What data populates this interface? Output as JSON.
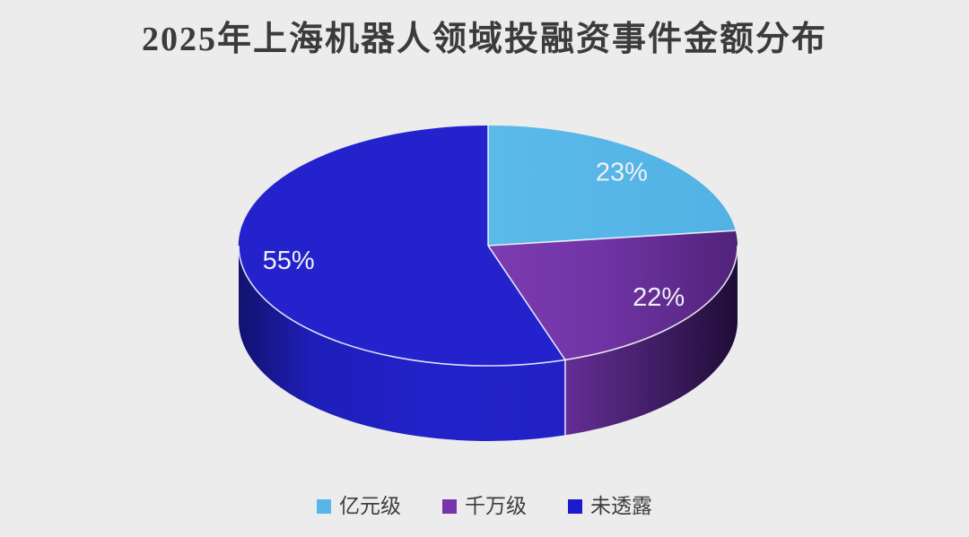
{
  "page": {
    "background": "#ececec"
  },
  "header": {
    "title": "2025年上海机器人领域投融资事件金额分布"
  },
  "chart_data": {
    "type": "pie",
    "style": "3d",
    "title": "2025年上海机器人领域投融资事件金额分布",
    "unit": "percent",
    "start_angle_deg": 0,
    "direction": "clockwise",
    "legend_position": "bottom",
    "grid": false,
    "categories": [
      "亿元级",
      "千万级",
      "未透露"
    ],
    "values": [
      23,
      22,
      55
    ],
    "data_label_color": "#f0eff6",
    "edge_line_color": "rgba(255,255,255,0.85)",
    "slices": [
      {
        "label": "亿元级",
        "value": 23,
        "data_label": "23%",
        "color": "#55b6e7",
        "top_stops": [
          [
            0,
            "#5bbae9"
          ],
          [
            1,
            "#52b2e5"
          ]
        ],
        "side_stops": [
          [
            0,
            "#3e85b6"
          ],
          [
            1,
            "#3e85b6"
          ]
        ]
      },
      {
        "label": "千万级",
        "value": 22,
        "data_label": "22%",
        "color": "#7635ab",
        "top_stops": [
          [
            0,
            "#7d3cb2"
          ],
          [
            0.5,
            "#6e33a2"
          ],
          [
            1,
            "#502379"
          ]
        ],
        "side_stops": [
          [
            0,
            "#642e95"
          ],
          [
            0.45,
            "#46206c"
          ],
          [
            1,
            "#1f0c37"
          ]
        ]
      },
      {
        "label": "未透露",
        "value": 55,
        "data_label": "55%",
        "color": "#1b1bcb",
        "top_stops": [
          [
            0,
            "#2322cd"
          ],
          [
            1,
            "#2322cd"
          ]
        ],
        "side_stops": [
          [
            0,
            "#12126f"
          ],
          [
            0.22,
            "#1e1eb8"
          ],
          [
            0.6,
            "#2222cb"
          ],
          [
            1,
            "#2121c6"
          ]
        ]
      }
    ]
  }
}
